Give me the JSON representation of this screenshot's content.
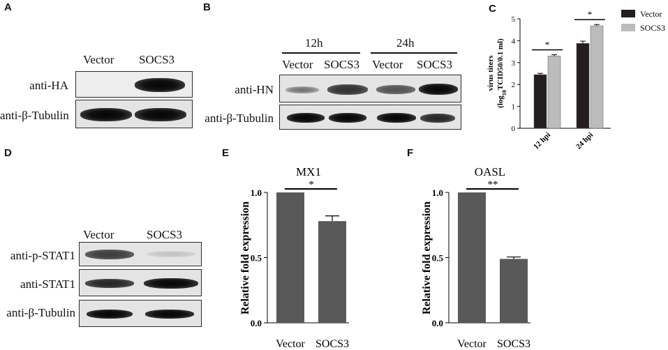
{
  "panels": {
    "A": {
      "letter": "A",
      "col_vector": "Vector",
      "col_socs3": "SOCS3",
      "row1": "anti-HA",
      "row2": "anti-β-Tubulin"
    },
    "B": {
      "letter": "B",
      "time_12": "12h",
      "time_24": "24h",
      "c1": "Vector",
      "c2": "SOCS3",
      "c3": "Vector",
      "c4": "SOCS3",
      "row1": "anti-HN",
      "row2": "anti-β-Tubulin"
    },
    "C": {
      "letter": "C"
    },
    "D": {
      "letter": "D",
      "col_vector": "Vector",
      "col_socs3": "SOCS3",
      "row1": "anti-p-STAT1",
      "row2": "anti-STAT1",
      "row3": "anti-β-Tubulin"
    },
    "E": {
      "letter": "E"
    },
    "F": {
      "letter": "F"
    }
  },
  "chart_data": [
    {
      "id": "C",
      "type": "bar",
      "ylabel_line1": "virus titers",
      "ylabel_line2_pre": "(log",
      "ylabel_line2_sub": "10",
      "ylabel_line2_post": "TCID50/0.1 ml)",
      "categories": [
        "12 hpi",
        "24 hpi"
      ],
      "series": [
        {
          "name": "Vector",
          "color": "#231f20",
          "values": [
            2.45,
            3.88
          ],
          "errors": [
            0.06,
            0.1
          ]
        },
        {
          "name": "SOCS3",
          "color": "#bcbcbc",
          "values": [
            3.3,
            4.68
          ],
          "errors": [
            0.06,
            0.06
          ]
        }
      ],
      "ylim": [
        0,
        5
      ],
      "yticks": [
        0,
        1,
        2,
        3,
        4,
        5
      ],
      "significance": [
        "*",
        "*"
      ]
    },
    {
      "id": "E",
      "type": "bar",
      "title": "MX1",
      "ylabel": "Relative fold expression",
      "categories": [
        "Vector",
        "SOCS3"
      ],
      "values": [
        1.0,
        0.78
      ],
      "errors": [
        0,
        0.04
      ],
      "color": "#595959",
      "ylim": [
        0,
        1.0
      ],
      "yticks": [
        "0.0",
        "0.5",
        "1.0"
      ],
      "significance": "*"
    },
    {
      "id": "F",
      "type": "bar",
      "title": "OASL",
      "ylabel": "Relative fold expression",
      "categories": [
        "Vector",
        "SOCS3"
      ],
      "values": [
        1.0,
        0.49
      ],
      "errors": [
        0,
        0.015
      ],
      "color": "#595959",
      "ylim": [
        0,
        1.0
      ],
      "yticks": [
        "0.0",
        "0.5",
        "1.0"
      ],
      "significance": "**"
    }
  ]
}
